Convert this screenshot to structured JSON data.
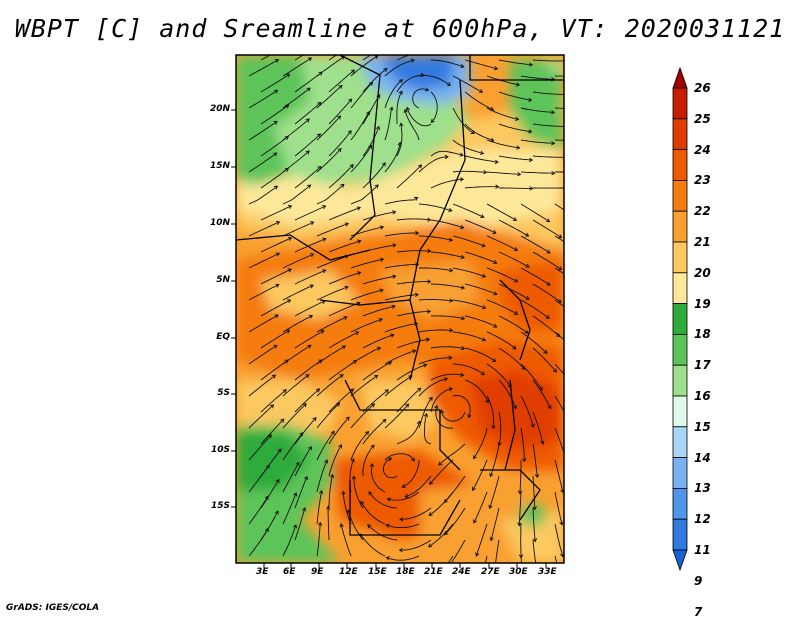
{
  "title": "WBPT [C] and Sreamline at 600hPa, VT: 2020031121",
  "credit": "GrADS: IGES/COLA",
  "map": {
    "variable": "WBPT",
    "units": "C",
    "level": "600hPa",
    "valid_time": "2020031121",
    "overlay": "streamlines"
  },
  "lat_ticks": [
    "20N",
    "15N",
    "10N",
    "5N",
    "EQ",
    "5S",
    "10S",
    "15S"
  ],
  "lon_ticks": [
    "3E",
    "6E",
    "9E",
    "12E",
    "15E",
    "18E",
    "21E",
    "24E",
    "27E",
    "30E",
    "33E"
  ],
  "colorbar": {
    "levels": [
      "26",
      "25",
      "24",
      "23",
      "22",
      "21",
      "20",
      "19",
      "18",
      "17",
      "16",
      "15",
      "14",
      "13",
      "12",
      "11",
      "9",
      "7"
    ],
    "colors": [
      "#a50000",
      "#c81e00",
      "#e03c00",
      "#ee5a00",
      "#f57c10",
      "#f9a030",
      "#fcc860",
      "#fde89a",
      "#2eab3a",
      "#5dc45a",
      "#9fe08c",
      "#e0f8e8",
      "#a8d4f6",
      "#78b2f0",
      "#5096e8",
      "#307ae0",
      "#1860d8"
    ]
  }
}
